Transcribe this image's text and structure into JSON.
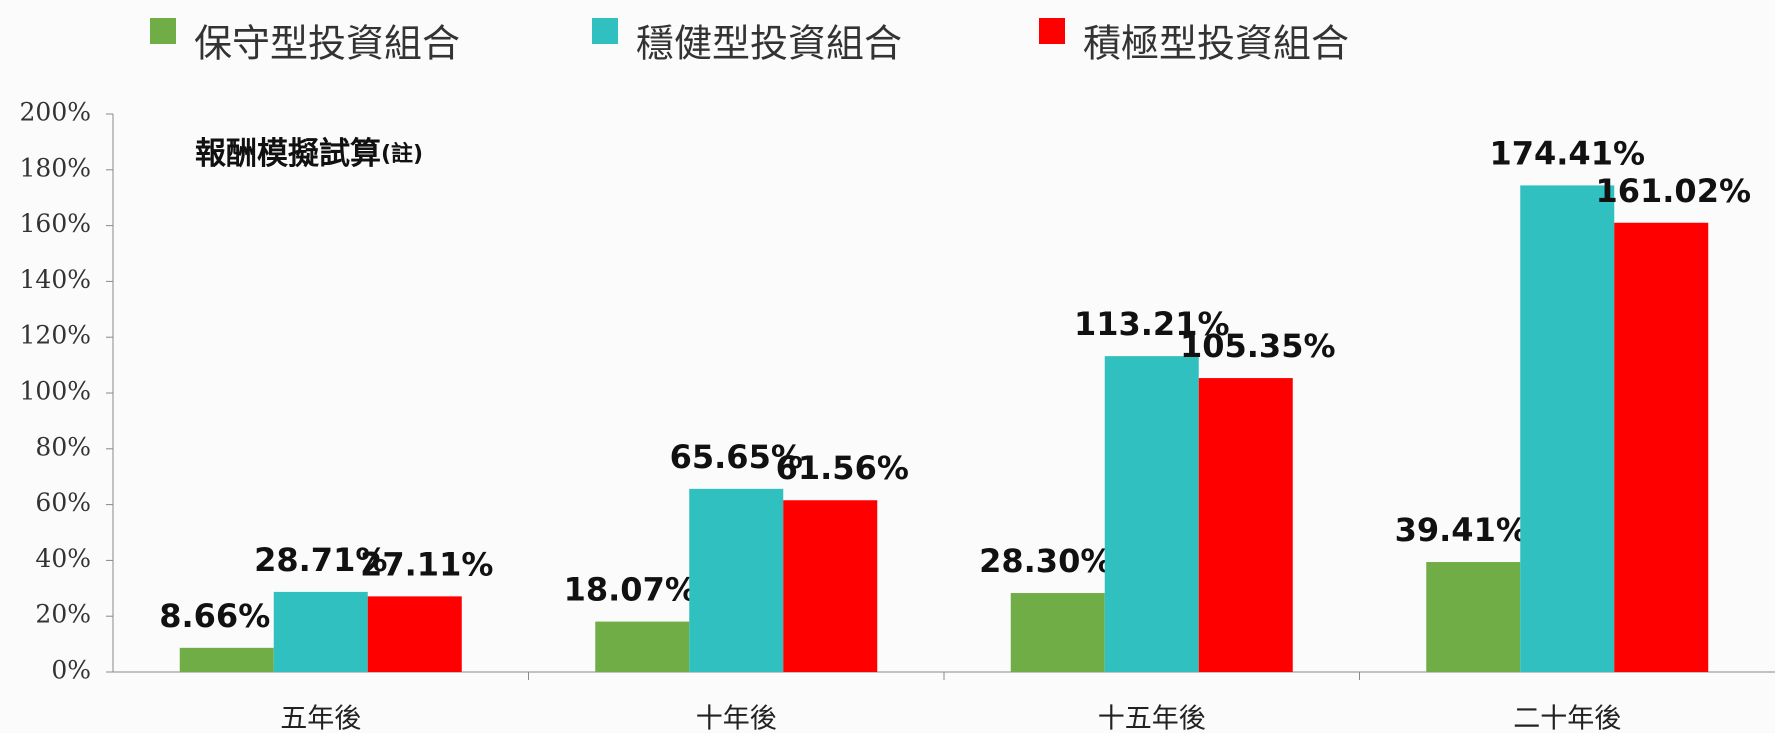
{
  "chart_data": {
    "type": "bar",
    "title": "報酬模擬試算",
    "title_note": "(註)",
    "categories": [
      "五年後",
      "十年後",
      "十五年後",
      "二十年後"
    ],
    "series": [
      {
        "name": "保守型投資組合",
        "color": "#70ad47",
        "values": [
          8.66,
          18.07,
          28.3,
          39.41
        ],
        "value_labels": [
          "8.66%",
          "18.07%",
          "28.30%",
          "39.41%"
        ]
      },
      {
        "name": "穩健型投資組合",
        "color": "#30c0c0",
        "values": [
          28.71,
          65.65,
          113.21,
          174.41
        ],
        "value_labels": [
          "28.71%",
          "65.65%",
          "113.21%",
          "174.41%"
        ]
      },
      {
        "name": "積極型投資組合",
        "color": "#ff0000",
        "values": [
          27.11,
          61.56,
          105.35,
          161.02
        ],
        "value_labels": [
          "27.11%",
          "61.56%",
          "105.35%",
          "161.02%"
        ]
      }
    ],
    "ylim": [
      0,
      200
    ],
    "yticks": [
      {
        "value": 0,
        "label": "0%"
      },
      {
        "value": 20,
        "label": "20%"
      },
      {
        "value": 40,
        "label": "40%"
      },
      {
        "value": 60,
        "label": "60%"
      },
      {
        "value": 80,
        "label": "80%"
      },
      {
        "value": 100,
        "label": "100%"
      },
      {
        "value": 120,
        "label": "120%"
      },
      {
        "value": 140,
        "label": "140%"
      },
      {
        "value": 160,
        "label": "160%"
      },
      {
        "value": 180,
        "label": "180%"
      },
      {
        "value": 200,
        "label": "200%"
      }
    ],
    "legend": "top"
  }
}
